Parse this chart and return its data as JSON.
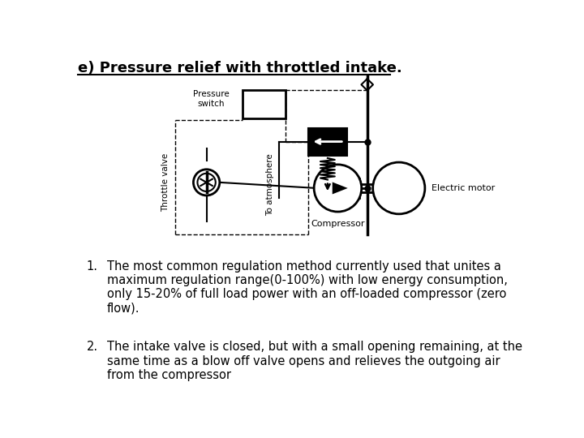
{
  "title": "e) Pressure relief with throttled intake.",
  "bg_color": "#ffffff",
  "text_color": "#000000",
  "label_pressure_switch": "Pressure\nswitch",
  "label_throttle_valve": "Throttle valve",
  "label_to_atmosphere": "To atmosphere",
  "label_electric_motor": "Electric motor",
  "label_compressor": "Compressor",
  "text1": "The most common regulation method currently used that unites a\nmaximum regulation range(0-100%) with low energy consumption,\nonly 15-20% of full load power with an off-loaded compressor (zero\nflow).",
  "text2": "The intake valve is closed, but with a small opening remaining, at the\nsame time as a blow off valve opens and relieves the outgoing air\nfrom the compressor"
}
